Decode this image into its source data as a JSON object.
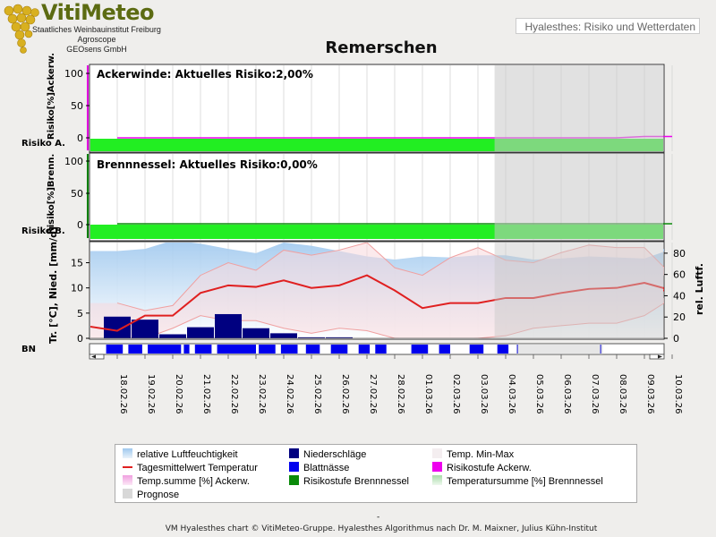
{
  "header": {
    "logo_title": "VitiMeteo",
    "logo_lines": [
      "Staatliches Weinbauinstitut Freiburg",
      "Agroscope",
      "GEOsens GmbH"
    ],
    "subtitle": "Hyalesthes: Risiko und Wetterdaten"
  },
  "chart_title": "Remerschen",
  "panels": {
    "ackerwinde": {
      "title": "Ackerwinde: Aktuelles Risiko:2,00%",
      "ylabel": "Risiko[%]Ackerw.",
      "band_label": "Risiko A.",
      "yticks": [
        "100",
        "50",
        "0"
      ]
    },
    "brennnessel": {
      "title": "Brennnessel: Aktuelles Risiko:0,00%",
      "ylabel": "Risiko[%]Brenn.",
      "band_label": "Risiko B.",
      "yticks": [
        "100",
        "50",
        "0"
      ]
    },
    "weather": {
      "ylabel_left": "Tr. [°C], Nied. [mm/d]",
      "ylabel_right": "rel. Luftf.",
      "yticks_left": [
        "15",
        "10",
        "5",
        "0"
      ],
      "yticks_right": [
        "80",
        "60",
        "40",
        "20",
        "0"
      ],
      "bn_label": "BN"
    }
  },
  "chart_data": {
    "type": "line",
    "title": "Remerschen",
    "dates": [
      "18.02.26",
      "19.02.26",
      "20.02.26",
      "21.02.26",
      "22.02.26",
      "23.02.26",
      "24.02.26",
      "25.02.26",
      "26.02.26",
      "27.02.26",
      "28.02.26",
      "01.03.26",
      "02.03.26",
      "03.03.26",
      "04.03.26",
      "05.03.26",
      "06.03.26",
      "07.03.26",
      "08.03.26",
      "09.03.26",
      "10.03.26"
    ],
    "prognosis_from_index": 13.6,
    "series": [
      {
        "name": "Tagesmitteltemperatur",
        "unit": "°C",
        "values": [
          1.5,
          4.5,
          4.5,
          9,
          10.5,
          10.2,
          11.5,
          10,
          10.5,
          12.5,
          9.5,
          6,
          7,
          7,
          8,
          8,
          9,
          9.8,
          10,
          11,
          9.5
        ]
      },
      {
        "name": "Temp. Max",
        "unit": "°C",
        "values": [
          7,
          5.5,
          6.5,
          12.5,
          15,
          13.5,
          17.5,
          16.5,
          17.5,
          19,
          14,
          12.5,
          16,
          18,
          15.5,
          15,
          17,
          18.5,
          18,
          18,
          12.5
        ]
      },
      {
        "name": "Temp. Min",
        "unit": "°C",
        "values": [
          -0.5,
          0,
          2,
          4.5,
          3.5,
          3.5,
          2,
          1,
          2,
          1.5,
          0,
          -0.5,
          -0.5,
          0,
          0.5,
          2,
          2.5,
          3,
          3,
          4.5,
          8
        ]
      },
      {
        "name": "relative Luftfeuchtigkeit",
        "unit": "%",
        "values": [
          82,
          84,
          92,
          89,
          84,
          80,
          90,
          87,
          82,
          77,
          74,
          77,
          76,
          78,
          78,
          74,
          75,
          77,
          76,
          75,
          84
        ]
      },
      {
        "name": "Niederschläge",
        "unit": "mm/d",
        "values": [
          4.3,
          3.7,
          0.8,
          2.2,
          4.8,
          2,
          1,
          0.2,
          0.2,
          0,
          0,
          0,
          0,
          0,
          0,
          0,
          0,
          0,
          0,
          0,
          0
        ]
      },
      {
        "name": "Risiko Ackerwinde",
        "unit": "%",
        "values": [
          0,
          0,
          0,
          0,
          0,
          0,
          0,
          0,
          0,
          0,
          0,
          0,
          0,
          0,
          0,
          0,
          0,
          0,
          0,
          2,
          2
        ]
      },
      {
        "name": "Risiko Brennnessel",
        "unit": "%",
        "values": [
          0,
          0,
          0,
          0,
          0,
          0,
          0,
          0,
          0,
          0,
          0,
          0,
          0,
          0,
          0,
          0,
          0,
          0,
          0,
          0,
          0
        ]
      }
    ],
    "blattnaesse": [
      [
        17.6,
        18.2
      ],
      [
        18.4,
        18.9
      ],
      [
        19.1,
        20.3
      ],
      [
        20.4,
        20.6
      ],
      [
        20.8,
        21.4
      ],
      [
        21.6,
        23.0
      ],
      [
        23.1,
        23.7
      ],
      [
        23.9,
        24.5
      ],
      [
        24.8,
        25.3
      ],
      [
        25.7,
        26.3
      ],
      [
        26.7,
        27.1
      ],
      [
        27.3,
        27.7
      ],
      [
        28.6,
        29.2
      ],
      [
        29.6,
        30.0
      ],
      [
        30.7,
        31.2
      ],
      [
        31.7,
        32.1
      ],
      [
        32.4,
        32.45
      ],
      [
        35.4,
        35.45
      ]
    ],
    "ylim_left": [
      0,
      19
    ],
    "ylim_right": [
      0,
      90
    ],
    "ylim_risk": [
      0,
      110
    ],
    "legend": [
      {
        "label": "relative Luftfeuchtigkeit",
        "color": "#a8ccec"
      },
      {
        "label": "Niederschläge",
        "color": "#000080"
      },
      {
        "label": "Temp. Min-Max",
        "color": "#f4eef0"
      },
      {
        "label": "Tagesmittelwert Temperatur",
        "color": "#e02020"
      },
      {
        "label": "Blattnässe",
        "color": "#0000ee"
      },
      {
        "label": "Risikostufe Ackerw.",
        "color": "#ee00ee"
      },
      {
        "label": "Temp.summe [%] Ackerw.",
        "color": "#f0b0e0"
      },
      {
        "label": "Risikostufe Brennnessel",
        "color": "#0a8a0a"
      },
      {
        "label": "Temperatursumme [%] Brennnessel",
        "color": "#b8e0b8"
      },
      {
        "label": "Prognose",
        "color": "#d8d8d8"
      }
    ]
  },
  "footer": "VM Hyalesthes chart © VitiMeteo-Gruppe. Hyalesthes Algorithmus nach Dr. M. Maixner, Julius Kühn-Institut",
  "footer_dash": "-"
}
